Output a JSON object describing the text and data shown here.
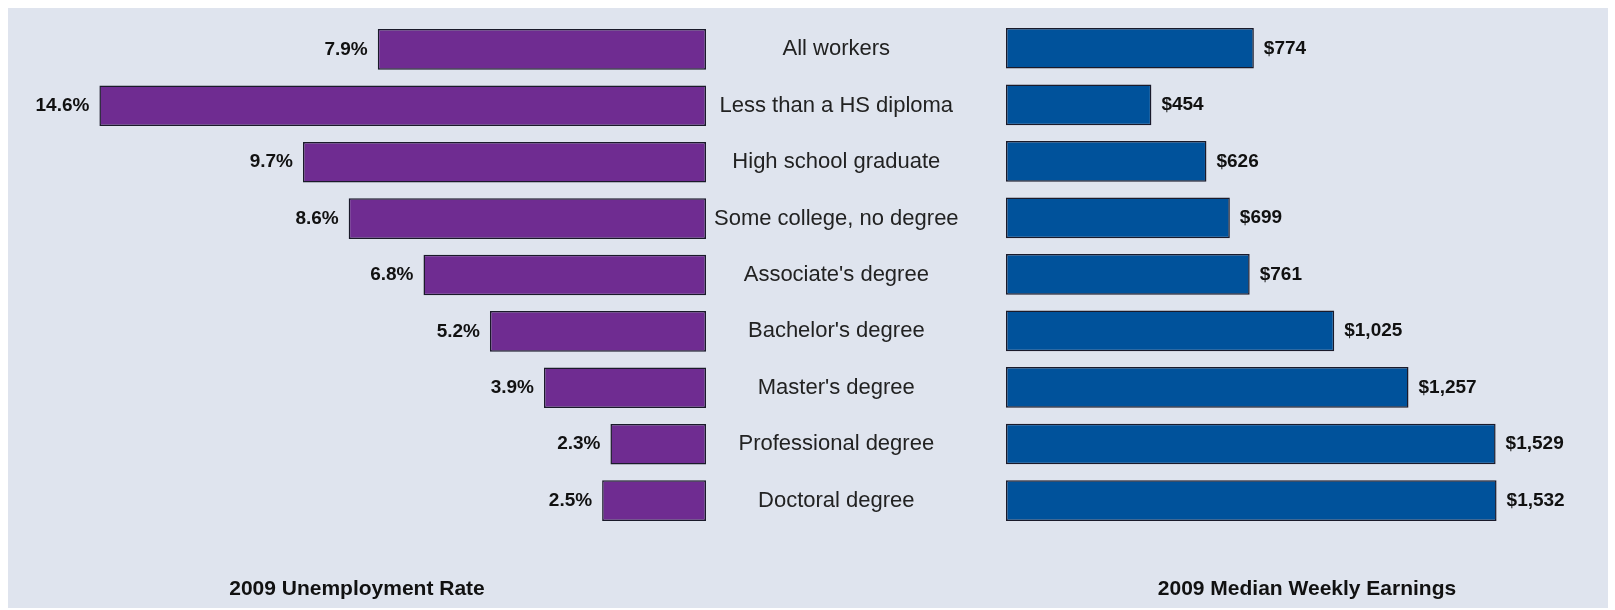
{
  "chart_data": [
    {
      "type": "bar",
      "orientation": "horizontal",
      "categories": [
        "All workers",
        "Less than a HS diploma",
        "High school graduate",
        "Some college, no degree",
        "Associate's degree",
        "Bachelor's degree",
        "Master's degree",
        "Professional degree",
        "Doctoral degree"
      ],
      "series": [
        {
          "color": "#6f2c91",
          "values": [
            7.9,
            14.6,
            9.7,
            8.6,
            6.8,
            5.2,
            3.9,
            2.3,
            2.5
          ],
          "value_labels": [
            "7.9%",
            "14.6%",
            "9.7%",
            "8.6%",
            "6.8%",
            "5.2%",
            "3.9%",
            "2.3%",
            "2.5%"
          ]
        }
      ],
      "xlim": [
        16.8,
        0
      ],
      "xlabel": "2009 Unemployment Rate",
      "tick_labels": "y",
      "grid": false,
      "legend": false
    },
    {
      "type": "bar",
      "orientation": "horizontal",
      "categories": [
        null,
        null,
        null,
        null,
        null,
        null,
        null,
        null,
        null
      ],
      "series": [
        {
          "color": "#00529b",
          "values": [
            774,
            454,
            626,
            699,
            761,
            1025,
            1257,
            1529,
            1532
          ],
          "value_labels": [
            "$774",
            "$454",
            "$626",
            "$699",
            "$761",
            "$1,025",
            "$1,257",
            "$1,529",
            "$1,532"
          ]
        }
      ],
      "xlim": [
        0,
        1880
      ],
      "xlabel": "2009 Median Weekly Earnings",
      "tick_labels": false,
      "grid": false,
      "legend": false
    }
  ]
}
